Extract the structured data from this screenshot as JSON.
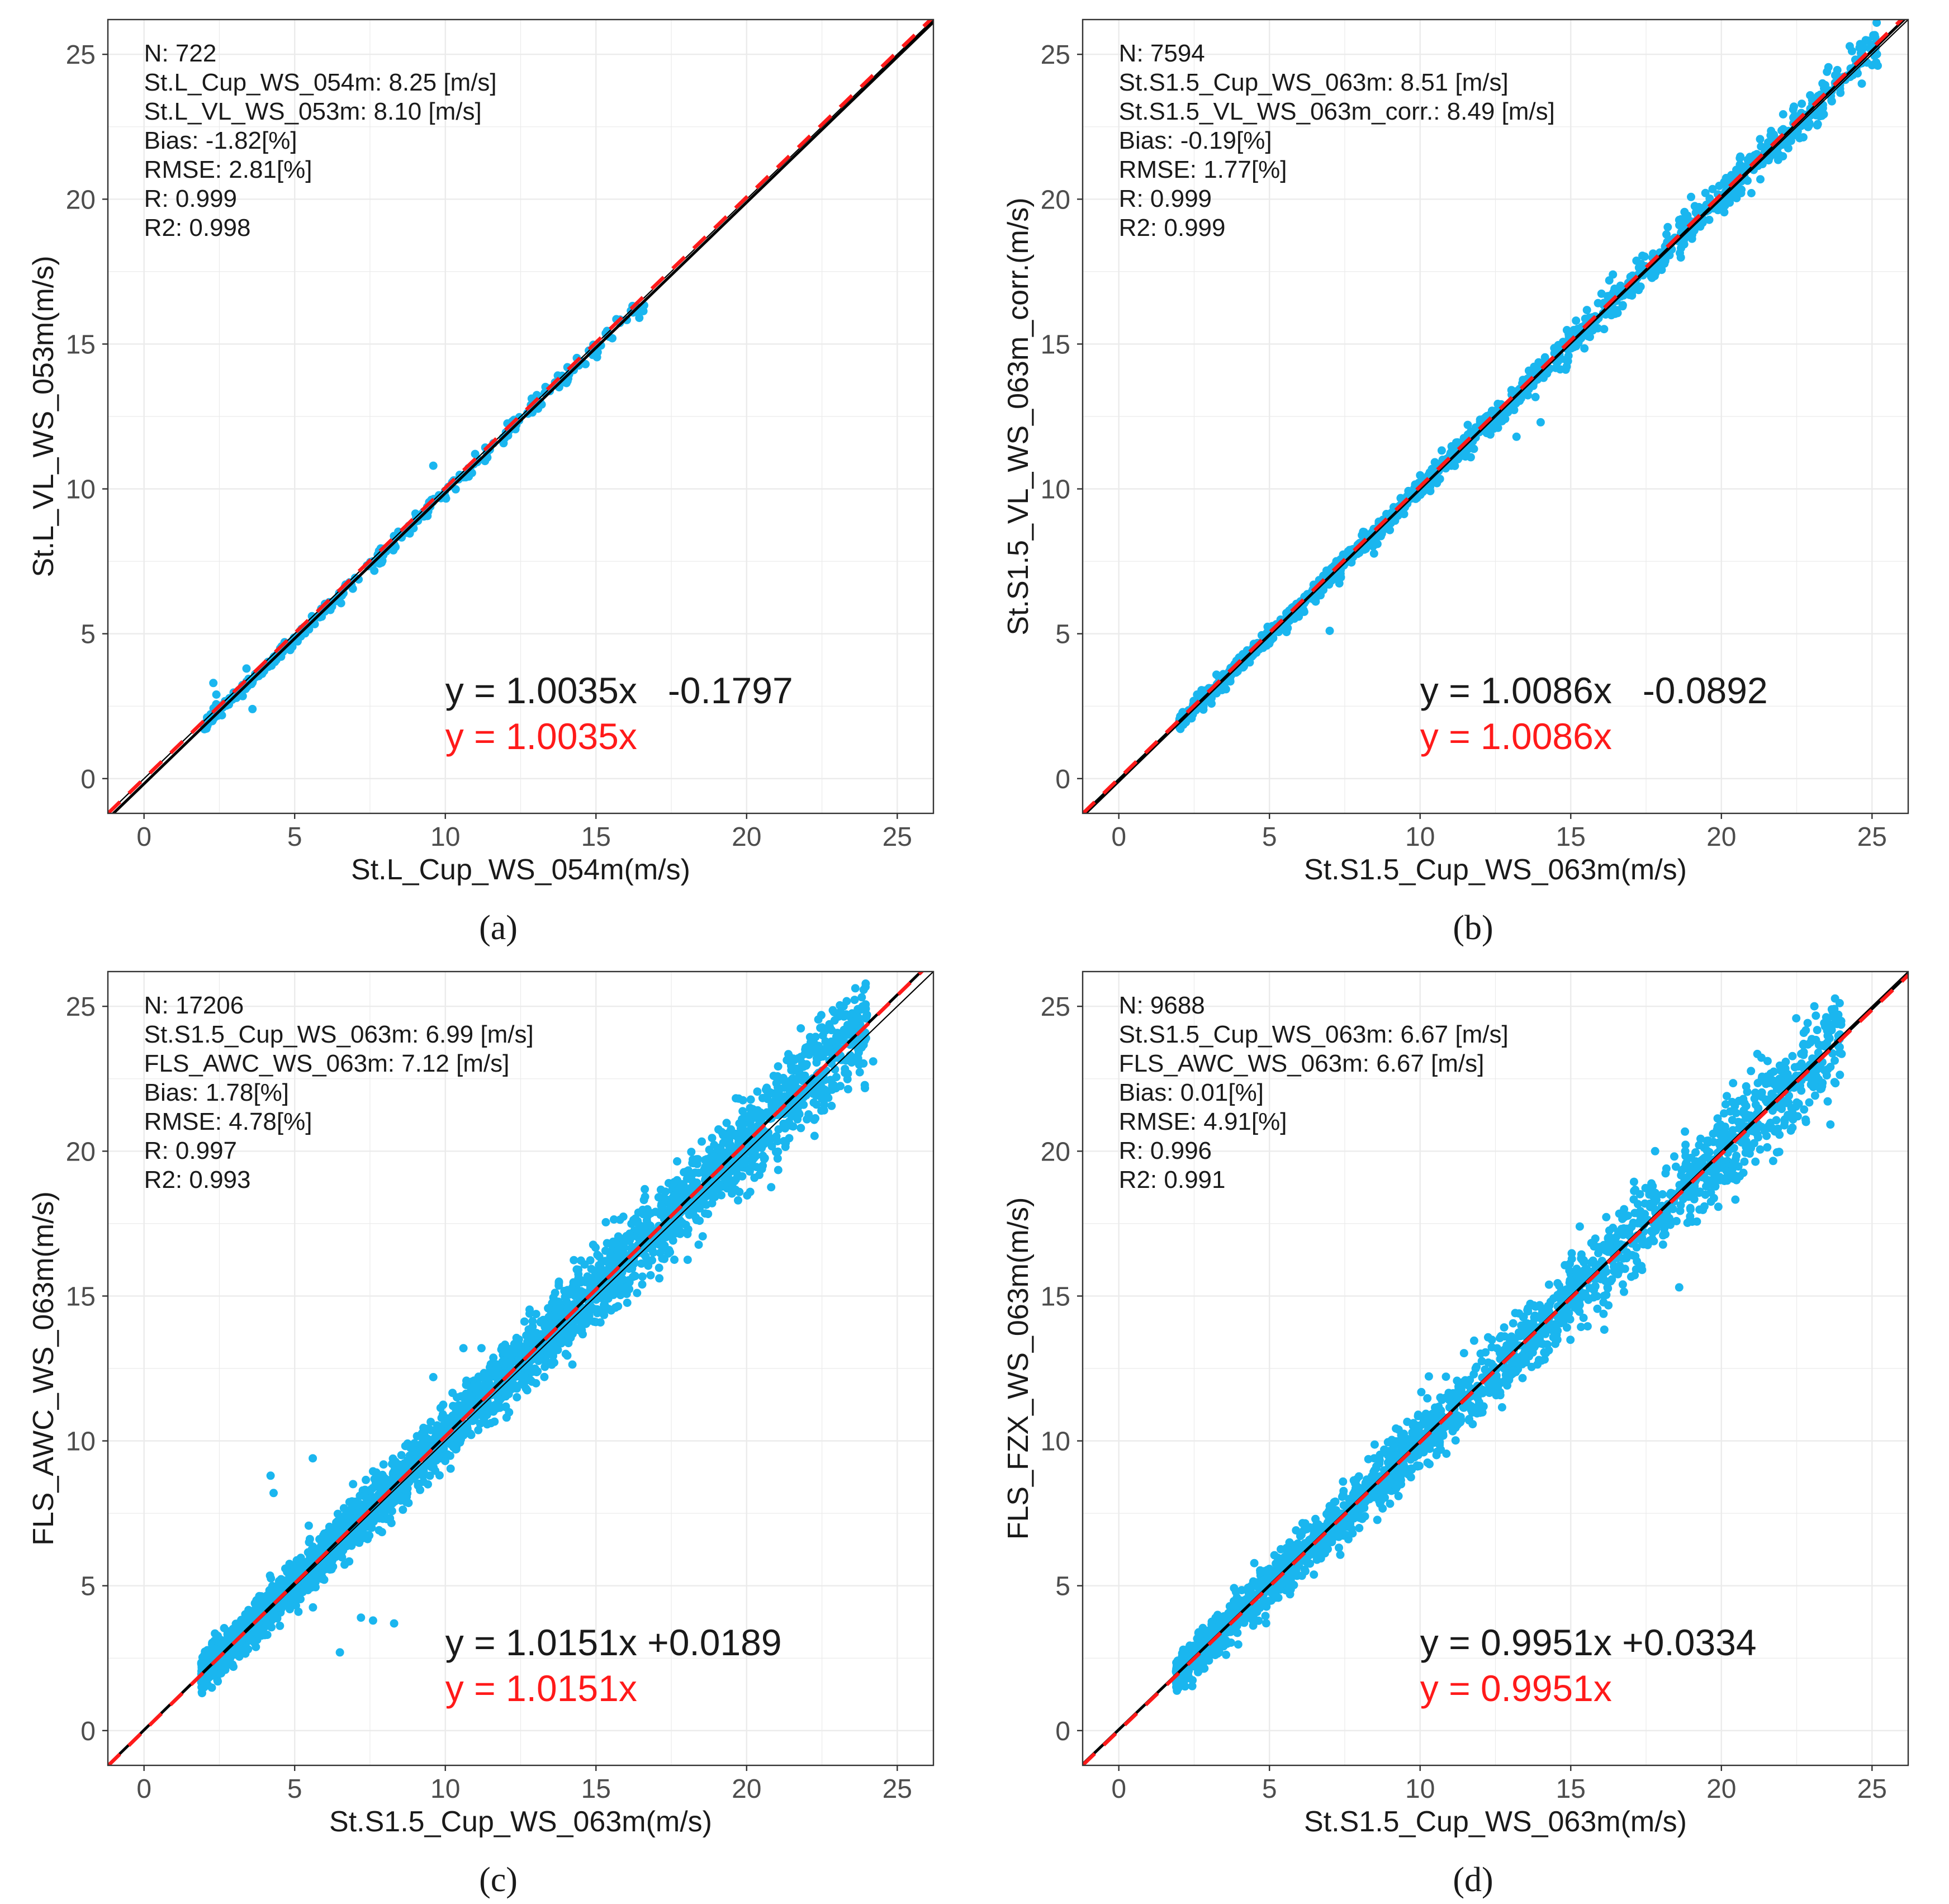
{
  "colors": {
    "points": "#1ab6ef",
    "fit_line": "#000000",
    "identity_line": "#000000",
    "red_line": "#ff1a1a",
    "grid": "#ebebeb",
    "panel_border": "#333333",
    "text": "#1a1a1a",
    "tick_label": "#4d4d4d"
  },
  "chart_data": [
    {
      "panel": "a",
      "caption": "(a)",
      "type": "scatter",
      "xlabel": "St.L_Cup_WS_054m(m/s)",
      "ylabel": "St.L_VL_WS_053m(m/s)",
      "xlim": [
        -1.2,
        26.2
      ],
      "ylim": [
        -1.2,
        26.2
      ],
      "ticks": [
        0,
        5,
        10,
        15,
        20,
        25
      ],
      "stats": [
        "N: 722",
        "St.L_Cup_WS_054m: 8.25 [m/s]",
        "St.L_VL_WS_053m: 8.10 [m/s]",
        "Bias: -1.82[%]",
        "RMSE: 2.81[%]",
        "R: 0.999",
        "R2: 0.998"
      ],
      "fit_equation": "y = 1.0035x   -0.1797",
      "origin_equation": "y = 1.0035x",
      "fit": {
        "slope": 1.0035,
        "intercept": -0.1797
      },
      "origin_fit": {
        "slope": 1.0035
      },
      "points": {
        "n_drawn": 340,
        "x_range": [
          2.0,
          16.6
        ],
        "spread": 0.13,
        "seed": 11,
        "outliers": [
          [
            2.3,
            3.3
          ],
          [
            2.4,
            2.9
          ],
          [
            3.6,
            2.4
          ],
          [
            9.6,
            10.8
          ],
          [
            3.4,
            3.8
          ]
        ]
      }
    },
    {
      "panel": "b",
      "caption": "(b)",
      "type": "scatter",
      "xlabel": "St.S1.5_Cup_WS_063m(m/s)",
      "ylabel": "St.S1.5_VL_WS_063m_corr.(m/s)",
      "xlim": [
        -1.2,
        26.2
      ],
      "ylim": [
        -1.2,
        26.2
      ],
      "ticks": [
        0,
        5,
        10,
        15,
        20,
        25
      ],
      "stats": [
        "N: 7594",
        "St.S1.5_Cup_WS_063m: 8.51 [m/s]",
        "St.S1.5_VL_WS_063m_corr.: 8.49 [m/s]",
        "Bias: -0.19[%]",
        "RMSE: 1.77[%]",
        "R: 0.999",
        "R2: 0.999"
      ],
      "fit_equation": "y = 1.0086x   -0.0892",
      "origin_equation": "y = 1.0086x",
      "fit": {
        "slope": 1.0086,
        "intercept": -0.0892
      },
      "origin_fit": {
        "slope": 1.0086
      },
      "points": {
        "n_drawn": 1400,
        "x_range": [
          2.0,
          25.2
        ],
        "spread": 0.17,
        "seed": 23,
        "outliers": [
          [
            7.0,
            5.1
          ],
          [
            13.2,
            11.8
          ],
          [
            14.0,
            12.3
          ],
          [
            2.6,
            2.9
          ],
          [
            16.4,
            17.4
          ]
        ]
      }
    },
    {
      "panel": "c",
      "caption": "(c)",
      "type": "scatter",
      "xlabel": "St.S1.5_Cup_WS_063m(m/s)",
      "ylabel": "FLS_AWC_WS_063m(m/s)",
      "xlim": [
        -1.2,
        26.2
      ],
      "ylim": [
        -1.2,
        26.2
      ],
      "ticks": [
        0,
        5,
        10,
        15,
        20,
        25
      ],
      "stats": [
        "N: 17206",
        "St.S1.5_Cup_WS_063m: 6.99 [m/s]",
        "FLS_AWC_WS_063m: 7.12 [m/s]",
        "Bias: 1.78[%]",
        "RMSE: 4.78[%]",
        "R: 0.997",
        "R2: 0.993"
      ],
      "fit_equation": "y = 1.0151x +0.0189",
      "origin_equation": "y = 1.0151x",
      "fit": {
        "slope": 1.0151,
        "intercept": 0.0189
      },
      "origin_fit": {
        "slope": 1.0151
      },
      "points": {
        "n_drawn": 3200,
        "x_range": [
          1.9,
          24.0
        ],
        "spread": 0.42,
        "seed": 37,
        "outliers": [
          [
            4.2,
            8.8
          ],
          [
            4.3,
            8.2
          ],
          [
            5.6,
            9.4
          ],
          [
            6.5,
            2.7
          ],
          [
            7.2,
            3.9
          ],
          [
            7.6,
            3.8
          ],
          [
            8.3,
            3.7
          ],
          [
            10.6,
            13.2
          ],
          [
            11.2,
            13.2
          ],
          [
            9.6,
            12.2
          ],
          [
            20.2,
            19.7
          ],
          [
            22.0,
            21.1
          ],
          [
            24.2,
            23.1
          ],
          [
            21.8,
            20.8
          ],
          [
            17.8,
            17.9
          ]
        ]
      }
    },
    {
      "panel": "d",
      "caption": "(d)",
      "type": "scatter",
      "xlabel": "St.S1.5_Cup_WS_063m(m/s)",
      "ylabel": "FLS_FZX_WS_063m(m/s)",
      "xlim": [
        -1.2,
        26.2
      ],
      "ylim": [
        -1.2,
        26.2
      ],
      "ticks": [
        0,
        5,
        10,
        15,
        20,
        25
      ],
      "stats": [
        "N: 9688",
        "St.S1.5_Cup_WS_063m: 6.67 [m/s]",
        "FLS_AWC_WS_063m: 6.67 [m/s]",
        "Bias: 0.01[%]",
        "RMSE: 4.91[%]",
        "R: 0.996",
        "R2: 0.991"
      ],
      "fit_equation": "y = 0.9951x +0.0334",
      "origin_equation": "y = 0.9951x",
      "fit": {
        "slope": 0.9951,
        "intercept": 0.0334
      },
      "origin_fit": {
        "slope": 0.9951
      },
      "points": {
        "n_drawn": 2200,
        "x_range": [
          1.9,
          24.0
        ],
        "spread": 0.42,
        "seed": 51,
        "outliers": [
          [
            15.3,
            17.4
          ],
          [
            17.8,
            20.0
          ],
          [
            18.6,
            15.3
          ],
          [
            19.0,
            19.3
          ],
          [
            20.5,
            19.0
          ],
          [
            22.0,
            22.0
          ],
          [
            23.5,
            24.5
          ],
          [
            23.0,
            22.6
          ],
          [
            15.8,
            15.9
          ],
          [
            18.8,
            20.0
          ]
        ]
      }
    }
  ]
}
